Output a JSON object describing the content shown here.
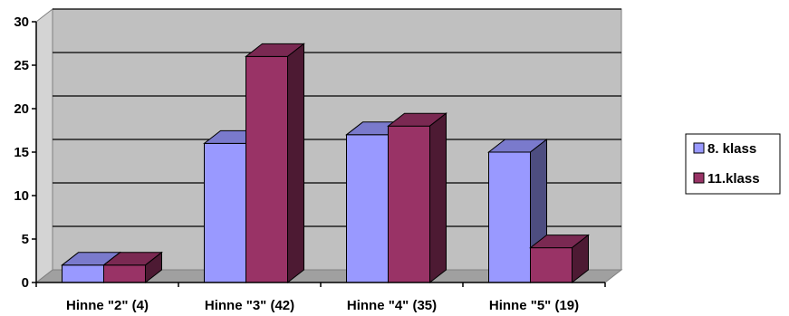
{
  "chart_data": {
    "type": "bar",
    "title": "",
    "xlabel": "",
    "ylabel": "",
    "categories": [
      "Hinne \"2\" (4)",
      "Hinne \"3\" (42)",
      "Hinne \"4\" (35)",
      "Hinne \"5\" (19)"
    ],
    "series": [
      {
        "name": "8. klass",
        "values": [
          2,
          16,
          17,
          15
        ],
        "color": "#9999FF"
      },
      {
        "name": "11.klass",
        "values": [
          2,
          26,
          18,
          4
        ],
        "color": "#993366"
      }
    ],
    "ylim": [
      0,
      30
    ],
    "yticks": [
      0,
      5,
      10,
      15,
      20,
      25,
      30
    ],
    "grid": true,
    "style": "3d-clustered-column",
    "wall_color": "#C0C0C0",
    "legend_position": "right"
  }
}
